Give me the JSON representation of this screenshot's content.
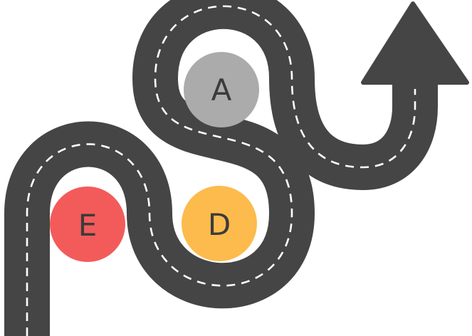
{
  "road": {
    "asphalt_color": "#454545",
    "lane_marking_color": "#ffffff",
    "direction_icon": "arrow-up-icon"
  },
  "milestones": [
    {
      "id": "a",
      "label": "A",
      "color": "#ababab"
    },
    {
      "id": "d",
      "label": "D",
      "color": "#fcbb4c"
    },
    {
      "id": "e",
      "label": "E",
      "color": "#f35b5b"
    }
  ]
}
